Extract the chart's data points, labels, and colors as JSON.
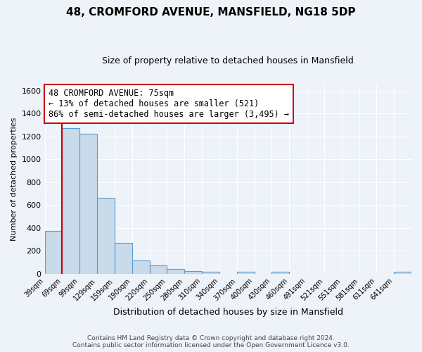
{
  "title": "48, CROMFORD AVENUE, MANSFIELD, NG18 5DP",
  "subtitle": "Size of property relative to detached houses in Mansfield",
  "xlabel": "Distribution of detached houses by size in Mansfield",
  "ylabel": "Number of detached properties",
  "footer_line1": "Contains HM Land Registry data © Crown copyright and database right 2024.",
  "footer_line2": "Contains public sector information licensed under the Open Government Licence v3.0.",
  "bin_labels": [
    "39sqm",
    "69sqm",
    "99sqm",
    "129sqm",
    "159sqm",
    "190sqm",
    "220sqm",
    "250sqm",
    "280sqm",
    "310sqm",
    "340sqm",
    "370sqm",
    "400sqm",
    "430sqm",
    "460sqm",
    "491sqm",
    "521sqm",
    "551sqm",
    "581sqm",
    "611sqm",
    "641sqm"
  ],
  "bar_values": [
    375,
    1275,
    1220,
    665,
    270,
    115,
    75,
    40,
    25,
    20,
    0,
    20,
    0,
    20,
    0,
    0,
    0,
    0,
    0,
    0,
    20
  ],
  "bar_color": "#c9daea",
  "bar_edge_color": "#5b9bd5",
  "property_line_color": "#cc0000",
  "property_line_bin": 1,
  "ylim_max": 1650,
  "yticks": [
    0,
    200,
    400,
    600,
    800,
    1000,
    1200,
    1400,
    1600
  ],
  "annotation_line1": "48 CROMFORD AVENUE: 75sqm",
  "annotation_line2": "← 13% of detached houses are smaller (521)",
  "annotation_line3": "86% of semi-detached houses are larger (3,495) →",
  "annotation_box_edge": "#cc0000",
  "background_color": "#eef2f9",
  "grid_color": "#ffffff"
}
